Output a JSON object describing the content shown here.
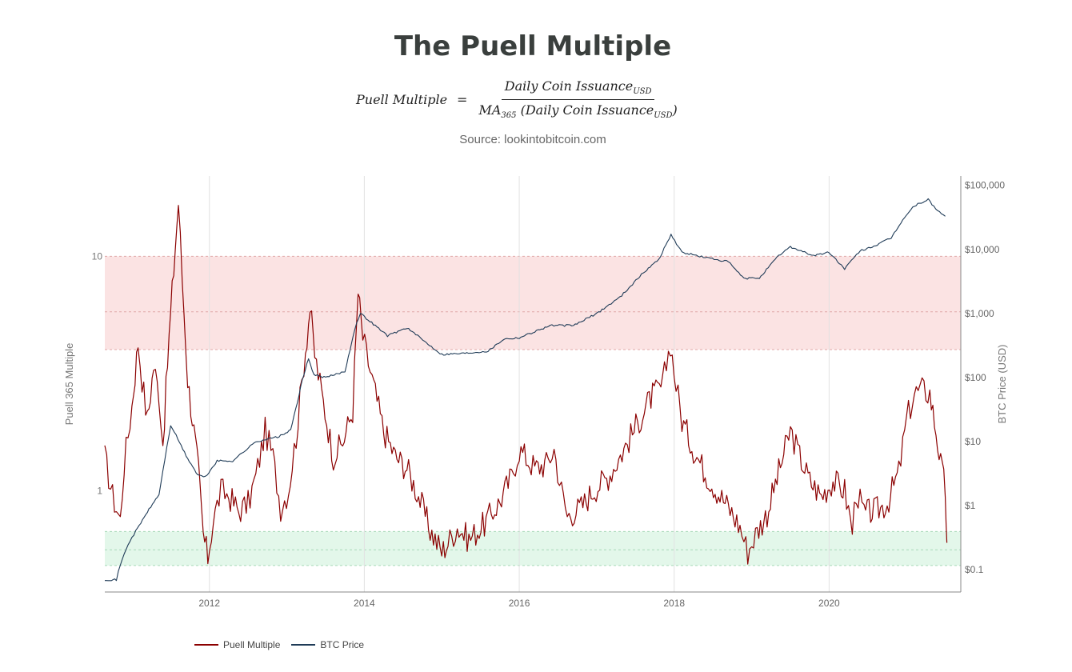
{
  "header": {
    "title": "The Puell Multiple",
    "formula": {
      "lhs": "Puell Multiple",
      "equals": "=",
      "numerator": "Daily Coin Issuance",
      "numerator_sub": "USD",
      "denominator_prefix": "MA",
      "denominator_prefix_sub": "365",
      "denominator_body": "(Daily Coin Issuance",
      "denominator_sub": "USD",
      "denominator_close": ")"
    },
    "source": "Source: lookintobitcoin.com"
  },
  "legend": {
    "puell_label": "Puell Multiple",
    "btc_label": "BTC Price"
  },
  "colors": {
    "puell": "#8b0000",
    "btc": "#1f3b57",
    "red_zone": "#fbe3e3",
    "green_zone": "#e3f7ea"
  },
  "chart_data": {
    "type": "line",
    "title": "The Puell Multiple",
    "xlabel": "",
    "x_ticks": [
      "2012",
      "2014",
      "2016",
      "2018",
      "2020"
    ],
    "xlim": [
      2010.65,
      2021.7
    ],
    "left_axis": {
      "label": "Puell 365 Multiple",
      "scale": "log",
      "ticks": [
        {
          "v": 1,
          "label": "1"
        },
        {
          "v": 10,
          "label": "10"
        }
      ],
      "ylim": [
        0.37,
        22
      ]
    },
    "right_axis": {
      "label": "BTC Price (USD)",
      "scale": "log",
      "ticks": [
        {
          "v": 0.1,
          "label": "$0.1"
        },
        {
          "v": 1,
          "label": "$1"
        },
        {
          "v": 10,
          "label": "$10"
        },
        {
          "v": 100,
          "label": "$100"
        },
        {
          "v": 1000,
          "label": "$1,000"
        },
        {
          "v": 10000,
          "label": "$10,000"
        },
        {
          "v": 100000,
          "label": "$100,000"
        }
      ],
      "ylim": [
        0.045,
        140000
      ]
    },
    "bands": [
      {
        "name": "red zone",
        "axis": "left",
        "from": 4,
        "to": 10,
        "mid": 5.8
      },
      {
        "name": "green zone",
        "axis": "left",
        "from": 0.48,
        "to": 0.67,
        "mid": 0.56
      }
    ],
    "grid": {
      "vertical": true,
      "horizontal": false
    },
    "legend_position": "bottom-left",
    "series": [
      {
        "name": "Puell Multiple",
        "axis": "left",
        "points": [
          [
            2010.65,
            1.4
          ],
          [
            2010.75,
            0.95
          ],
          [
            2010.85,
            0.75
          ],
          [
            2010.9,
            1.3
          ],
          [
            2011.0,
            2.3
          ],
          [
            2011.08,
            4.3
          ],
          [
            2011.13,
            3.0
          ],
          [
            2011.2,
            2.0
          ],
          [
            2011.28,
            3.4
          ],
          [
            2011.35,
            2.6
          ],
          [
            2011.4,
            1.6
          ],
          [
            2011.48,
            4.5
          ],
          [
            2011.56,
            11.0
          ],
          [
            2011.6,
            17.0
          ],
          [
            2011.65,
            8.0
          ],
          [
            2011.72,
            3.0
          ],
          [
            2011.8,
            1.8
          ],
          [
            2011.86,
            1.2
          ],
          [
            2011.92,
            0.65
          ],
          [
            2011.98,
            0.52
          ],
          [
            2012.05,
            0.75
          ],
          [
            2012.15,
            1.0
          ],
          [
            2012.25,
            0.95
          ],
          [
            2012.38,
            0.82
          ],
          [
            2012.5,
            0.88
          ],
          [
            2012.6,
            1.15
          ],
          [
            2012.72,
            1.8
          ],
          [
            2012.82,
            1.4
          ],
          [
            2012.92,
            0.85
          ],
          [
            2013.02,
            1.0
          ],
          [
            2013.12,
            1.7
          ],
          [
            2013.22,
            3.5
          ],
          [
            2013.3,
            6.0
          ],
          [
            2013.36,
            3.8
          ],
          [
            2013.45,
            2.6
          ],
          [
            2013.6,
            1.4
          ],
          [
            2013.72,
            1.6
          ],
          [
            2013.85,
            2.2
          ],
          [
            2013.92,
            7.0
          ],
          [
            2013.98,
            4.5
          ],
          [
            2014.1,
            3.0
          ],
          [
            2014.25,
            1.8
          ],
          [
            2014.4,
            1.4
          ],
          [
            2014.55,
            1.25
          ],
          [
            2014.7,
            0.95
          ],
          [
            2014.85,
            0.68
          ],
          [
            2015.0,
            0.55
          ],
          [
            2015.08,
            0.6
          ],
          [
            2015.2,
            0.7
          ],
          [
            2015.35,
            0.62
          ],
          [
            2015.55,
            0.72
          ],
          [
            2015.75,
            0.9
          ],
          [
            2015.9,
            1.15
          ],
          [
            2016.0,
            1.5
          ],
          [
            2016.2,
            1.25
          ],
          [
            2016.35,
            1.3
          ],
          [
            2016.45,
            1.5
          ],
          [
            2016.52,
            1.1
          ],
          [
            2016.62,
            0.78
          ],
          [
            2016.8,
            0.85
          ],
          [
            2016.95,
            1.0
          ],
          [
            2017.15,
            1.15
          ],
          [
            2017.35,
            1.5
          ],
          [
            2017.55,
            2.0
          ],
          [
            2017.7,
            2.5
          ],
          [
            2017.85,
            2.8
          ],
          [
            2017.95,
            4.3
          ],
          [
            2018.0,
            3.2
          ],
          [
            2018.1,
            2.0
          ],
          [
            2018.25,
            1.5
          ],
          [
            2018.4,
            1.2
          ],
          [
            2018.55,
            1.0
          ],
          [
            2018.7,
            0.85
          ],
          [
            2018.85,
            0.7
          ],
          [
            2018.95,
            0.55
          ],
          [
            2019.05,
            0.65
          ],
          [
            2019.2,
            0.8
          ],
          [
            2019.35,
            1.2
          ],
          [
            2019.5,
            1.8
          ],
          [
            2019.62,
            1.4
          ],
          [
            2019.75,
            1.1
          ],
          [
            2019.9,
            0.95
          ],
          [
            2020.05,
            1.1
          ],
          [
            2020.2,
            1.0
          ],
          [
            2020.3,
            0.68
          ],
          [
            2020.35,
            1.0
          ],
          [
            2020.45,
            0.8
          ],
          [
            2020.6,
            0.82
          ],
          [
            2020.75,
            0.88
          ],
          [
            2020.9,
            1.2
          ],
          [
            2021.0,
            2.0
          ],
          [
            2021.1,
            2.6
          ],
          [
            2021.2,
            2.7
          ],
          [
            2021.3,
            2.6
          ],
          [
            2021.38,
            1.8
          ],
          [
            2021.44,
            1.3
          ],
          [
            2021.5,
            1.0
          ],
          [
            2021.52,
            0.6
          ]
        ]
      },
      {
        "name": "BTC Price",
        "axis": "right",
        "points": [
          [
            2010.65,
            0.07
          ],
          [
            2010.8,
            0.07
          ],
          [
            2010.85,
            0.12
          ],
          [
            2010.95,
            0.25
          ],
          [
            2011.05,
            0.4
          ],
          [
            2011.2,
            0.8
          ],
          [
            2011.35,
            1.5
          ],
          [
            2011.45,
            8
          ],
          [
            2011.5,
            18
          ],
          [
            2011.55,
            14
          ],
          [
            2011.7,
            6
          ],
          [
            2011.85,
            3
          ],
          [
            2011.95,
            2.8
          ],
          [
            2012.1,
            5
          ],
          [
            2012.3,
            5
          ],
          [
            2012.6,
            10
          ],
          [
            2012.9,
            12
          ],
          [
            2013.05,
            15
          ],
          [
            2013.2,
            90
          ],
          [
            2013.28,
            200
          ],
          [
            2013.35,
            110
          ],
          [
            2013.5,
            100
          ],
          [
            2013.75,
            125
          ],
          [
            2013.88,
            600
          ],
          [
            2013.95,
            1000
          ],
          [
            2014.05,
            800
          ],
          [
            2014.3,
            450
          ],
          [
            2014.55,
            600
          ],
          [
            2014.8,
            350
          ],
          [
            2015.0,
            230
          ],
          [
            2015.3,
            240
          ],
          [
            2015.6,
            260
          ],
          [
            2015.8,
            400
          ],
          [
            2016.0,
            420
          ],
          [
            2016.4,
            650
          ],
          [
            2016.7,
            650
          ],
          [
            2017.0,
            1000
          ],
          [
            2017.3,
            1800
          ],
          [
            2017.6,
            4300
          ],
          [
            2017.8,
            7000
          ],
          [
            2017.96,
            17000
          ],
          [
            2018.1,
            9000
          ],
          [
            2018.4,
            7500
          ],
          [
            2018.7,
            6400
          ],
          [
            2018.9,
            3500
          ],
          [
            2019.1,
            3600
          ],
          [
            2019.35,
            8000
          ],
          [
            2019.5,
            11000
          ],
          [
            2019.8,
            8000
          ],
          [
            2020.0,
            9000
          ],
          [
            2020.2,
            5000
          ],
          [
            2020.4,
            9500
          ],
          [
            2020.6,
            11500
          ],
          [
            2020.8,
            15000
          ],
          [
            2020.95,
            29000
          ],
          [
            2021.1,
            48000
          ],
          [
            2021.28,
            60000
          ],
          [
            2021.4,
            40000
          ],
          [
            2021.5,
            33000
          ]
        ]
      }
    ]
  }
}
